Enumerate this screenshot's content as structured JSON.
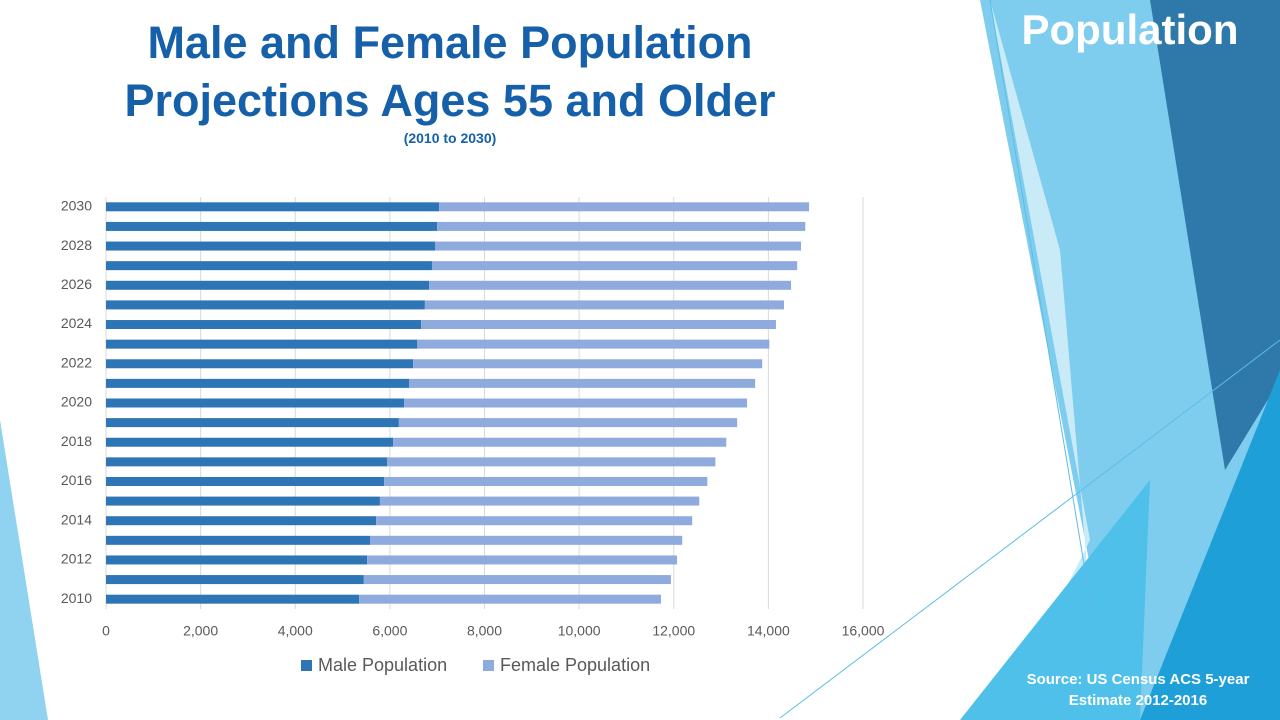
{
  "slide": {
    "heading": "Population",
    "source": "Source: US Census ACS 5-year Estimate 2012-2016"
  },
  "chart_data": {
    "type": "bar",
    "orientation": "horizontal",
    "stacked": true,
    "title": "Male and Female Population Projections Ages 55 and Older",
    "subtitle": "(2010 to 2030)",
    "categories": [
      "2010",
      null,
      "2012",
      null,
      "2014",
      null,
      "2016",
      null,
      "2018",
      null,
      "2020",
      null,
      "2022",
      null,
      "2024",
      null,
      "2026",
      null,
      "2028",
      null,
      "2030"
    ],
    "series": [
      {
        "name": "Male Population",
        "color": "#2e75b6",
        "values": [
          5350,
          5450,
          5520,
          5580,
          5710,
          5790,
          5880,
          5940,
          6070,
          6190,
          6300,
          6410,
          6490,
          6580,
          6660,
          6740,
          6830,
          6890,
          6960,
          7000,
          7040
        ]
      },
      {
        "name": "Female Population",
        "color": "#8faadc",
        "values": [
          6380,
          6490,
          6550,
          6600,
          6680,
          6750,
          6830,
          6940,
          7040,
          7150,
          7250,
          7310,
          7380,
          7440,
          7500,
          7590,
          7650,
          7720,
          7730,
          7780,
          7820
        ]
      }
    ],
    "xlim": [
      0,
      16000
    ],
    "xticks": [
      0,
      {
        "value": 2000,
        "label": "2,000"
      },
      {
        "value": 4000,
        "label": "4,000"
      },
      {
        "value": 6000,
        "label": "6,000"
      },
      {
        "value": 8000,
        "label": "8,000"
      },
      {
        "value": 10000,
        "label": "10,000"
      },
      {
        "value": 12000,
        "label": "12,000"
      },
      {
        "value": 14000,
        "label": "14,000"
      },
      {
        "value": 16000,
        "label": "16,000"
      }
    ],
    "grid": true,
    "legend": "bottom"
  }
}
